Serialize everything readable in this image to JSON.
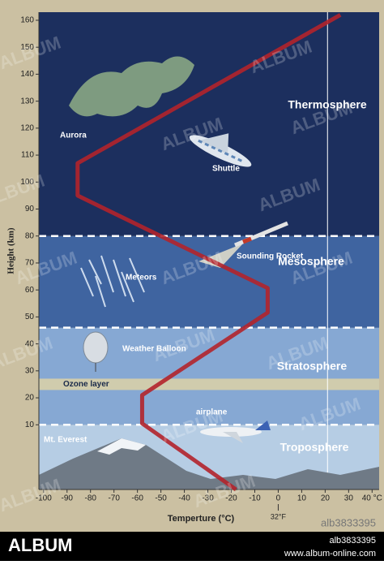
{
  "chart_data": {
    "type": "line",
    "xlabel": "Temperture (°C)",
    "ylabel": "Height (km)",
    "x": [
      -18,
      -58,
      -58,
      -4.5,
      -4.5,
      -85.5,
      -85.5,
      26.5
    ],
    "series": [
      {
        "color": "#b3232b",
        "values": [
          -14,
          10.5,
          21,
          51.6,
          60.7,
          95,
          107,
          162
        ]
      }
    ],
    "xlim": [
      -102,
      43
    ],
    "ylim": [
      -14,
      163
    ],
    "xticks": [
      -100,
      -90,
      -80,
      -70,
      -60,
      -50,
      -40,
      -30,
      -20,
      -10,
      0,
      10,
      20,
      30,
      {
        "value": 40,
        "label": "40 °C"
      }
    ],
    "yticks": [
      10,
      20,
      30,
      40,
      50,
      60,
      70,
      80,
      90,
      100,
      110,
      120,
      130,
      140,
      150,
      160
    ],
    "fahrenheit_note": {
      "value": 0,
      "label": "32°F"
    },
    "marker_x": 21,
    "layers": [
      {
        "name": "Troposphere",
        "from": -14,
        "to": 10,
        "color": "#b6cde4"
      },
      {
        "name": "Stratosphere",
        "from": 10,
        "to": 46,
        "color": "#86a8d3"
      },
      {
        "name": "Mesosphere",
        "from": 46,
        "to": 80,
        "color": "#3f64a0"
      },
      {
        "name": "Thermosphere",
        "from": 80,
        "to": 163,
        "color": "#1c2f5e"
      }
    ],
    "ozone_layer": {
      "label": "Ozone layer",
      "height": 25
    },
    "annotations": [
      "Aurora",
      "Shuttle",
      "Meteors",
      "Sounding Rocket",
      "Weather Balloon",
      "airplane",
      "Mt. Everest"
    ]
  },
  "watermark": "ALBUM",
  "footer": {
    "brand": "ALBUM",
    "id": "alb3833395",
    "url": "www.album-online.com"
  }
}
